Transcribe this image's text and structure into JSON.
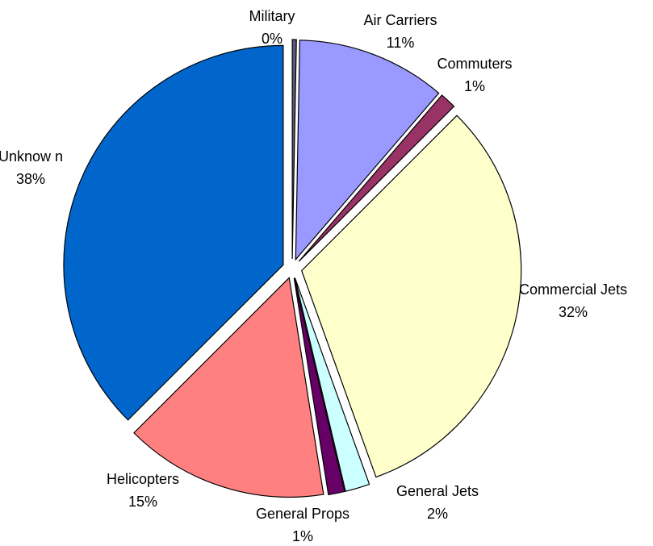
{
  "chart_data": {
    "type": "pie",
    "title": "",
    "start": "top (12 o'clock), clockwise",
    "exploded": true,
    "slices": [
      {
        "label": "Military",
        "percent_label": "0%",
        "value": 0.3,
        "color": "#5a5a78"
      },
      {
        "label": "Air Carriers",
        "percent_label": "11%",
        "value": 11,
        "color": "#9999ff"
      },
      {
        "label": "Commuters",
        "percent_label": "1%",
        "value": 1.2,
        "color": "#993366"
      },
      {
        "label": "Commercial Jets",
        "percent_label": "32%",
        "value": 32,
        "color": "#ffffcc"
      },
      {
        "label": "General Jets",
        "percent_label": "2%",
        "value": 1.8,
        "color": "#ccffff"
      },
      {
        "label": "General Props",
        "percent_label": "1%",
        "value": 1.2,
        "color": "#660066"
      },
      {
        "label": "Helicopters",
        "percent_label": "15%",
        "value": 15,
        "color": "#ff8080"
      },
      {
        "label": "Unknow n",
        "percent_label": "38%",
        "value": 37.5,
        "color": "#0066cc"
      }
    ]
  }
}
